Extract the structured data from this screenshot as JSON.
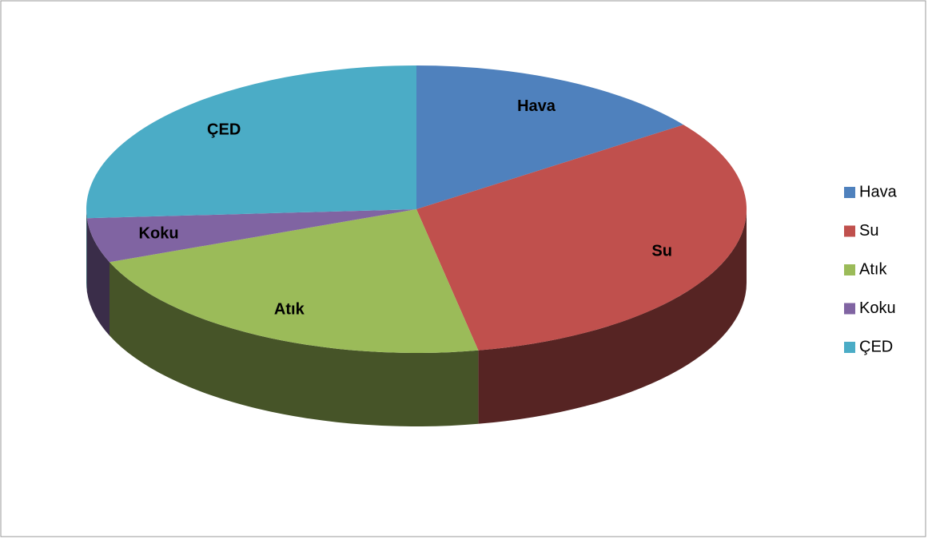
{
  "chart_data": {
    "type": "pie",
    "categories": [
      "Hava",
      "Su",
      "Atık",
      "Koku",
      "ÇED"
    ],
    "values": [
      15,
      32,
      22,
      5,
      26
    ],
    "colors": [
      "#4f81bd",
      "#c0504d",
      "#9bbb59",
      "#8064a2",
      "#4bacc6"
    ]
  }
}
